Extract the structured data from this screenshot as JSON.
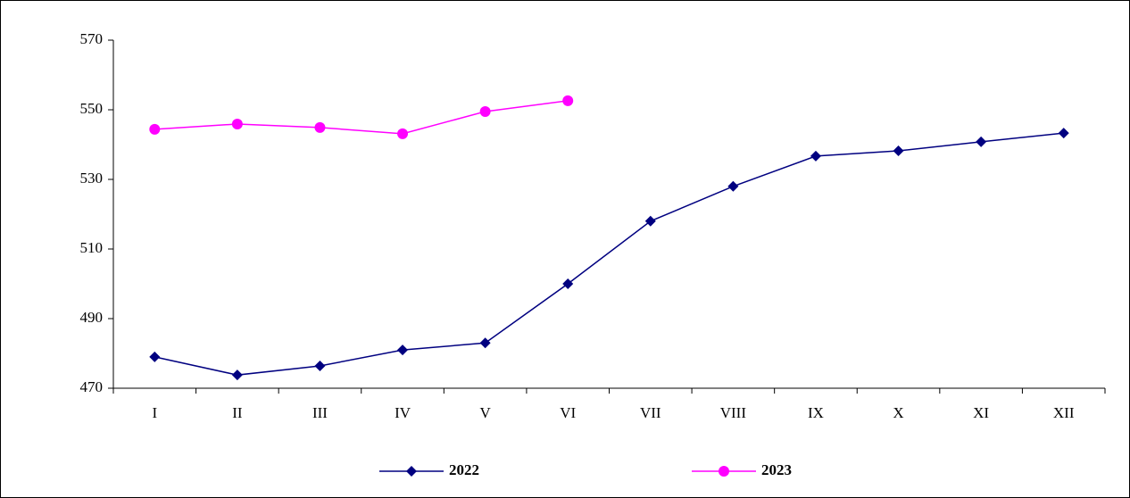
{
  "chart_data": {
    "type": "line",
    "categories": [
      "I",
      "II",
      "III",
      "IV",
      "V",
      "VI",
      "VII",
      "VIII",
      "IX",
      "X",
      "XI",
      "XII"
    ],
    "series": [
      {
        "name": "2022",
        "color": "#000080",
        "marker": "diamond",
        "values": [
          479,
          473.8,
          476.4,
          481,
          483,
          500,
          518,
          528,
          536.7,
          538.2,
          540.8,
          543.3
        ]
      },
      {
        "name": "2023",
        "color": "#ff00ff",
        "marker": "circle",
        "values": [
          544.4,
          545.9,
          544.9,
          543.1,
          549.5,
          552.6,
          null,
          null,
          null,
          null,
          null,
          null
        ]
      }
    ],
    "ylim": [
      470,
      570
    ],
    "yticks": [
      470,
      490,
      510,
      530,
      550,
      570
    ],
    "grid": false,
    "legend": "bottom"
  }
}
